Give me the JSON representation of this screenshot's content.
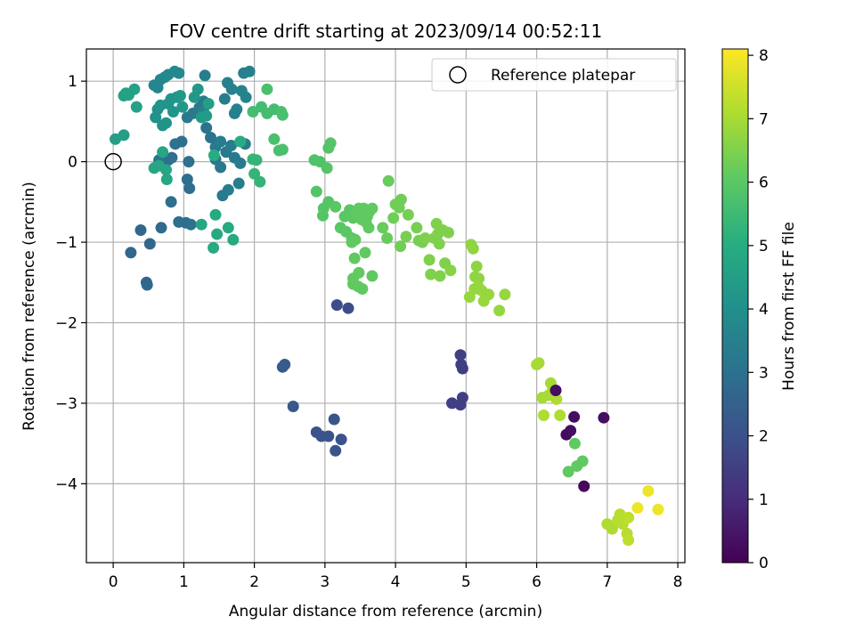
{
  "chart_data": {
    "type": "scatter",
    "title": "FOV centre drift starting at 2023/09/14 00:52:11",
    "xlabel": "Angular distance from reference (arcmin)",
    "ylabel": "Rotation from reference (arcmin)",
    "xlim": [
      -0.38,
      8.1
    ],
    "ylim": [
      -4.98,
      1.4
    ],
    "xticks": [
      0,
      1,
      2,
      3,
      4,
      5,
      6,
      7,
      8
    ],
    "yticks": [
      1,
      0,
      -1,
      -2,
      -3,
      -4
    ],
    "grid": true,
    "colormap": "viridis",
    "colorbar": {
      "label": "Hours from first FF file",
      "range": [
        0,
        8.1
      ],
      "ticks": [
        0,
        1,
        2,
        3,
        4,
        5,
        6,
        7,
        8
      ]
    },
    "legend": {
      "position": "top-right",
      "entries": [
        "Reference platepar"
      ]
    },
    "reference_point": {
      "x": 0,
      "y": 0,
      "style": "open circle"
    },
    "points": [
      [
        6.0,
        -2.52,
        7.0
      ],
      [
        6.03,
        -2.5,
        7.0
      ],
      [
        6.08,
        -2.93,
        7.0
      ],
      [
        6.1,
        -3.15,
        7.1
      ],
      [
        6.17,
        -2.9,
        7.0
      ],
      [
        6.2,
        -2.75,
        7.0
      ],
      [
        6.23,
        -2.82,
        7.0
      ],
      [
        6.28,
        -2.95,
        7.1
      ],
      [
        6.33,
        -3.15,
        7.1
      ],
      [
        6.27,
        -2.84,
        0.3
      ],
      [
        6.42,
        -3.39,
        0.2
      ],
      [
        6.48,
        -3.34,
        0.3
      ],
      [
        6.53,
        -3.17,
        0.3
      ],
      [
        6.67,
        -4.03,
        0.2
      ],
      [
        6.95,
        -3.18,
        0.3
      ],
      [
        6.45,
        -3.85,
        6.1
      ],
      [
        6.57,
        -3.78,
        6.1
      ],
      [
        6.65,
        -3.72,
        6.1
      ],
      [
        6.54,
        -3.5,
        6.1
      ],
      [
        7.0,
        -4.5,
        7.1
      ],
      [
        7.07,
        -4.56,
        7.1
      ],
      [
        7.15,
        -4.45,
        7.2
      ],
      [
        7.18,
        -4.38,
        7.2
      ],
      [
        7.22,
        -4.5,
        7.2
      ],
      [
        7.28,
        -4.62,
        7.2
      ],
      [
        7.3,
        -4.7,
        7.3
      ],
      [
        7.3,
        -4.42,
        7.3
      ],
      [
        7.43,
        -4.3,
        7.9
      ],
      [
        7.58,
        -4.09,
        7.9
      ],
      [
        7.72,
        -4.32,
        7.9
      ],
      [
        4.8,
        -3.0,
        1.5
      ],
      [
        4.92,
        -3.02,
        1.5
      ],
      [
        4.95,
        -2.93,
        1.5
      ],
      [
        4.92,
        -2.4,
        1.5
      ],
      [
        4.93,
        -2.52,
        1.5
      ],
      [
        4.95,
        -2.57,
        1.5
      ],
      [
        3.17,
        -1.78,
        1.9
      ],
      [
        3.33,
        -1.82,
        1.9
      ],
      [
        2.4,
        -2.55,
        2.3
      ],
      [
        2.43,
        -2.52,
        2.3
      ],
      [
        2.55,
        -3.04,
        2.2
      ],
      [
        2.88,
        -3.36,
        2.1
      ],
      [
        2.95,
        -3.41,
        2.1
      ],
      [
        3.05,
        -3.41,
        2.1
      ],
      [
        3.15,
        -3.59,
        2.1
      ],
      [
        3.23,
        -3.45,
        2.1
      ],
      [
        3.13,
        -3.2,
        2.1
      ],
      [
        0.25,
        -1.13,
        2.7
      ],
      [
        0.39,
        -0.85,
        2.7
      ],
      [
        0.47,
        -1.5,
        2.7
      ],
      [
        0.48,
        -1.53,
        2.7
      ],
      [
        0.52,
        -1.02,
        2.7
      ],
      [
        0.68,
        -0.82,
        2.8
      ],
      [
        0.82,
        -0.5,
        2.9
      ],
      [
        0.93,
        -0.75,
        2.9
      ],
      [
        1.03,
        -0.76,
        2.9
      ],
      [
        1.1,
        -0.78,
        3.0
      ],
      [
        0.88,
        0.22,
        3.0
      ],
      [
        0.97,
        0.25,
        3.0
      ],
      [
        1.05,
        -0.22,
        2.9
      ],
      [
        1.08,
        -0.33,
        2.9
      ],
      [
        0.78,
        0.02,
        2.9
      ],
      [
        0.83,
        0.05,
        3.0
      ],
      [
        0.65,
        0.02,
        3.1
      ],
      [
        1.07,
        0.0,
        3.0
      ],
      [
        1.32,
        0.42,
        3.1
      ],
      [
        1.38,
        0.3,
        3.1
      ],
      [
        1.45,
        0.18,
        3.2
      ],
      [
        1.45,
        0.03,
        3.2
      ],
      [
        1.52,
        -0.07,
        3.2
      ],
      [
        1.6,
        0.12,
        3.2
      ],
      [
        1.72,
        0.05,
        3.3
      ],
      [
        1.8,
        -0.02,
        3.3
      ],
      [
        1.55,
        -0.42,
        3.3
      ],
      [
        1.63,
        -0.35,
        3.4
      ],
      [
        1.78,
        -0.27,
        3.4
      ],
      [
        1.67,
        0.2,
        3.4
      ],
      [
        1.87,
        0.22,
        3.4
      ],
      [
        1.52,
        0.25,
        3.4
      ],
      [
        1.05,
        0.55,
        3.3
      ],
      [
        1.13,
        0.6,
        3.3
      ],
      [
        1.22,
        0.67,
        3.3
      ],
      [
        1.28,
        0.75,
        3.3
      ],
      [
        1.3,
        1.07,
        3.4
      ],
      [
        1.28,
        0.62,
        3.5
      ],
      [
        1.58,
        0.78,
        3.4
      ],
      [
        1.62,
        0.98,
        3.5
      ],
      [
        1.68,
        0.9,
        3.5
      ],
      [
        1.72,
        0.6,
        3.5
      ],
      [
        1.75,
        0.65,
        3.5
      ],
      [
        1.85,
        1.1,
        3.5
      ],
      [
        1.93,
        1.12,
        3.5
      ],
      [
        1.88,
        0.8,
        3.6
      ],
      [
        1.82,
        0.88,
        3.6
      ],
      [
        0.58,
        0.95,
        3.7
      ],
      [
        0.63,
        0.92,
        3.7
      ],
      [
        0.67,
        1.02,
        3.7
      ],
      [
        0.73,
        1.05,
        3.8
      ],
      [
        0.78,
        1.08,
        3.8
      ],
      [
        0.87,
        1.12,
        3.8
      ],
      [
        0.93,
        1.1,
        3.8
      ],
      [
        0.6,
        0.55,
        4.1
      ],
      [
        0.63,
        0.65,
        4.1
      ],
      [
        0.67,
        0.7,
        4.2
      ],
      [
        0.7,
        0.45,
        4.1
      ],
      [
        0.75,
        0.48,
        4.2
      ],
      [
        0.78,
        0.72,
        4.2
      ],
      [
        0.82,
        0.78,
        4.2
      ],
      [
        0.85,
        0.62,
        4.2
      ],
      [
        0.9,
        0.8,
        4.2
      ],
      [
        0.95,
        0.82,
        4.3
      ],
      [
        0.98,
        0.68,
        4.3
      ],
      [
        1.15,
        0.8,
        4.3
      ],
      [
        1.2,
        0.9,
        4.3
      ],
      [
        1.25,
        0.55,
        4.4
      ],
      [
        1.32,
        0.57,
        4.4
      ],
      [
        1.35,
        0.72,
        4.5
      ],
      [
        0.03,
        0.28,
        4.5
      ],
      [
        0.15,
        0.33,
        4.5
      ],
      [
        0.15,
        0.82,
        4.6
      ],
      [
        0.18,
        0.85,
        4.6
      ],
      [
        0.22,
        0.83,
        4.6
      ],
      [
        0.3,
        0.9,
        4.6
      ],
      [
        0.33,
        0.68,
        4.6
      ],
      [
        0.58,
        -0.08,
        4.8
      ],
      [
        0.65,
        -0.05,
        4.8
      ],
      [
        0.7,
        0.12,
        4.8
      ],
      [
        0.75,
        -0.1,
        4.8
      ],
      [
        0.76,
        -0.22,
        4.8
      ],
      [
        1.25,
        -0.78,
        4.8
      ],
      [
        1.45,
        -0.66,
        4.9
      ],
      [
        1.47,
        -0.9,
        4.9
      ],
      [
        1.42,
        -1.07,
        4.9
      ],
      [
        1.63,
        -0.82,
        4.9
      ],
      [
        1.7,
        -0.97,
        4.9
      ],
      [
        1.43,
        0.08,
        5.0
      ],
      [
        1.8,
        0.25,
        5.0
      ],
      [
        1.98,
        0.03,
        5.3
      ],
      [
        2.03,
        0.02,
        5.3
      ],
      [
        2.0,
        -0.15,
        5.3
      ],
      [
        2.08,
        -0.25,
        5.3
      ],
      [
        1.98,
        0.62,
        5.6
      ],
      [
        2.1,
        0.68,
        5.6
      ],
      [
        2.18,
        0.6,
        5.6
      ],
      [
        2.28,
        0.65,
        5.6
      ],
      [
        2.38,
        0.62,
        5.7
      ],
      [
        2.4,
        0.58,
        5.7
      ],
      [
        2.18,
        0.9,
        5.7
      ],
      [
        2.28,
        0.28,
        5.7
      ],
      [
        2.35,
        0.14,
        5.7
      ],
      [
        2.4,
        0.15,
        5.7
      ],
      [
        2.85,
        0.02,
        5.8
      ],
      [
        2.93,
        0.0,
        5.8
      ],
      [
        3.03,
        -0.08,
        5.9
      ],
      [
        3.05,
        0.17,
        5.9
      ],
      [
        3.08,
        0.23,
        5.9
      ],
      [
        2.88,
        -0.37,
        5.9
      ],
      [
        2.98,
        -0.58,
        5.9
      ],
      [
        3.05,
        -0.5,
        5.9
      ],
      [
        2.97,
        -0.67,
        5.9
      ],
      [
        3.15,
        -0.56,
        6.0
      ],
      [
        3.22,
        -0.82,
        6.0
      ],
      [
        3.28,
        -0.68,
        6.0
      ],
      [
        3.3,
        -0.87,
        6.0
      ],
      [
        3.35,
        -0.6,
        6.0
      ],
      [
        3.38,
        -0.95,
        6.0
      ],
      [
        3.4,
        -0.7,
        6.0
      ],
      [
        3.45,
        -0.65,
        6.1
      ],
      [
        3.48,
        -0.58,
        6.1
      ],
      [
        3.5,
        -0.62,
        6.1
      ],
      [
        3.52,
        -0.72,
        6.1
      ],
      [
        3.55,
        -0.58,
        6.1
      ],
      [
        3.58,
        -0.75,
        6.1
      ],
      [
        3.6,
        -0.68,
        6.1
      ],
      [
        3.62,
        -0.82,
        6.1
      ],
      [
        3.63,
        -0.62,
        6.1
      ],
      [
        3.67,
        -0.58,
        6.1
      ],
      [
        3.43,
        -0.97,
        6.1
      ],
      [
        3.38,
        -1.0,
        6.1
      ],
      [
        3.42,
        -1.2,
        6.1
      ],
      [
        3.57,
        -1.13,
        6.1
      ],
      [
        3.48,
        -1.38,
        6.1
      ],
      [
        3.4,
        -1.45,
        6.1
      ],
      [
        3.4,
        -1.52,
        6.1
      ],
      [
        3.47,
        -1.55,
        6.1
      ],
      [
        3.53,
        -1.58,
        6.1
      ],
      [
        3.67,
        -1.42,
        6.1
      ],
      [
        3.82,
        -0.82,
        6.2
      ],
      [
        3.88,
        -0.95,
        6.2
      ],
      [
        3.9,
        -0.24,
        6.2
      ],
      [
        3.97,
        -0.7,
        6.3
      ],
      [
        4.0,
        -0.53,
        6.3
      ],
      [
        4.05,
        -0.57,
        6.3
      ],
      [
        4.08,
        -0.47,
        6.3
      ],
      [
        4.07,
        -1.05,
        6.3
      ],
      [
        4.15,
        -0.93,
        6.4
      ],
      [
        4.18,
        -0.66,
        6.4
      ],
      [
        4.3,
        -0.82,
        6.4
      ],
      [
        4.33,
        -0.98,
        6.4
      ],
      [
        4.38,
        -1.0,
        6.4
      ],
      [
        4.42,
        -0.95,
        6.5
      ],
      [
        4.48,
        -1.22,
        6.5
      ],
      [
        4.5,
        -1.4,
        6.5
      ],
      [
        4.55,
        -0.95,
        6.5
      ],
      [
        4.58,
        -0.77,
        6.5
      ],
      [
        4.6,
        -0.9,
        6.5
      ],
      [
        4.62,
        -1.02,
        6.5
      ],
      [
        4.63,
        -1.42,
        6.5
      ],
      [
        4.67,
        -0.85,
        6.5
      ],
      [
        4.7,
        -1.26,
        6.5
      ],
      [
        4.75,
        -0.88,
        6.5
      ],
      [
        4.78,
        -1.35,
        6.6
      ],
      [
        5.07,
        -1.03,
        6.7
      ],
      [
        5.1,
        -1.08,
        6.7
      ],
      [
        5.15,
        -1.3,
        6.7
      ],
      [
        5.13,
        -1.43,
        6.7
      ],
      [
        5.18,
        -1.45,
        6.7
      ],
      [
        5.17,
        -1.55,
        6.8
      ],
      [
        5.05,
        -1.68,
        6.8
      ],
      [
        5.12,
        -1.58,
        6.8
      ],
      [
        5.22,
        -1.6,
        6.8
      ],
      [
        5.25,
        -1.73,
        6.8
      ],
      [
        5.32,
        -1.65,
        6.8
      ],
      [
        5.47,
        -1.85,
        6.8
      ],
      [
        5.55,
        -1.65,
        6.8
      ]
    ]
  }
}
